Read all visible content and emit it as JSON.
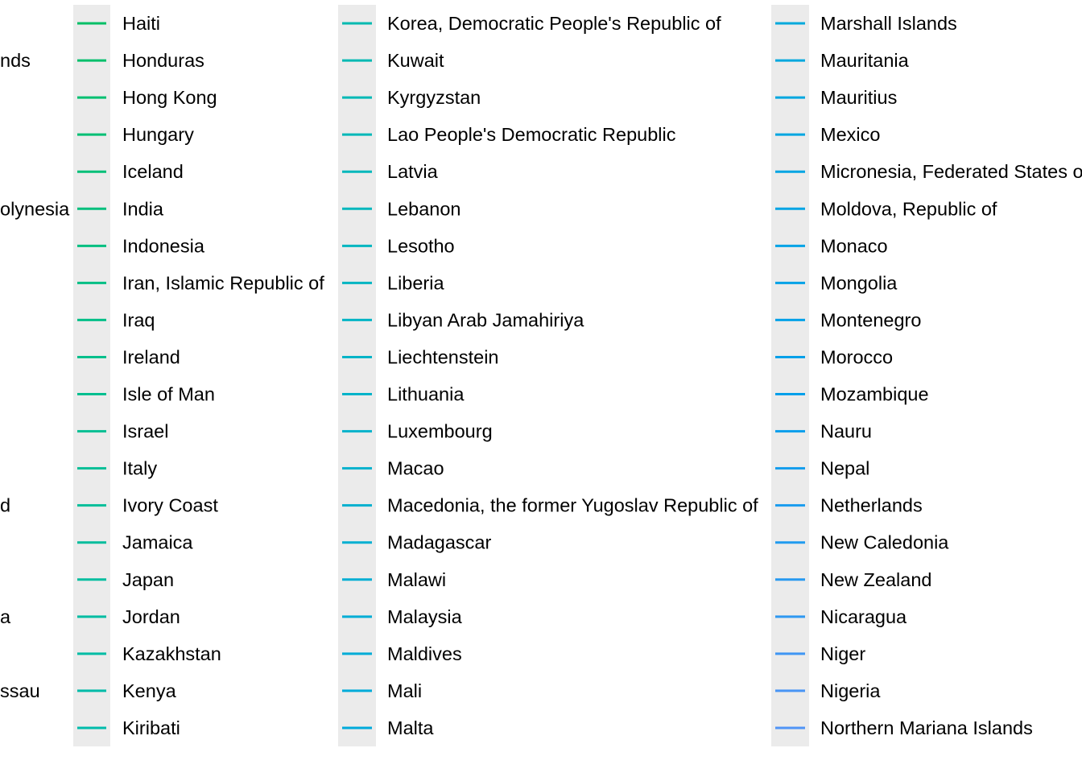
{
  "chart_data": {
    "type": "line",
    "legend_placement": "right",
    "legend_key_background": "#ebebeb",
    "legend": {
      "columns": [
        {
          "partial": true,
          "entries": [
            {
              "label": "",
              "color": "#00bf5d"
            },
            {
              "label": "nds",
              "color": "#00bf62"
            },
            {
              "label": "",
              "color": "#00bf66"
            },
            {
              "label": "",
              "color": "#00bf6b"
            },
            {
              "label": "",
              "color": "#00bf70"
            },
            {
              "label": "olynesia",
              "color": "#00bf74"
            },
            {
              "label": "",
              "color": "#00bf78"
            },
            {
              "label": "",
              "color": "#00bf7c"
            },
            {
              "label": "",
              "color": "#00bf80"
            },
            {
              "label": "",
              "color": "#00bf84"
            },
            {
              "label": "",
              "color": "#00bf88"
            },
            {
              "label": "",
              "color": "#00bf8b"
            },
            {
              "label": "",
              "color": "#00bf8f"
            },
            {
              "label": "d",
              "color": "#00bf93"
            },
            {
              "label": "",
              "color": "#00be96"
            },
            {
              "label": "",
              "color": "#00be99"
            },
            {
              "label": "a",
              "color": "#00bd9c"
            },
            {
              "label": "",
              "color": "#00bd9f"
            },
            {
              "label": "ssau",
              "color": "#00bca2"
            },
            {
              "label": "",
              "color": "#00bca5"
            }
          ]
        },
        {
          "partial": false,
          "entries": [
            {
              "label": "Haiti",
              "color": "#00bf66"
            },
            {
              "label": "Honduras",
              "color": "#00bf6b"
            },
            {
              "label": "Hong Kong",
              "color": "#00bf70"
            },
            {
              "label": "Hungary",
              "color": "#00bf74"
            },
            {
              "label": "Iceland",
              "color": "#00bf78"
            },
            {
              "label": "India",
              "color": "#00bf7c"
            },
            {
              "label": "Indonesia",
              "color": "#00bf80"
            },
            {
              "label": "Iran, Islamic Republic of",
              "color": "#00bf84"
            },
            {
              "label": "Iraq",
              "color": "#00bf88"
            },
            {
              "label": "Ireland",
              "color": "#00bf8b"
            },
            {
              "label": "Isle of Man",
              "color": "#00bf8f"
            },
            {
              "label": "Israel",
              "color": "#00bf93"
            },
            {
              "label": "Italy",
              "color": "#00be96"
            },
            {
              "label": "Ivory Coast",
              "color": "#00be99"
            },
            {
              "label": "Jamaica",
              "color": "#00bd9c"
            },
            {
              "label": "Japan",
              "color": "#00bd9f"
            },
            {
              "label": "Jordan",
              "color": "#00bca2"
            },
            {
              "label": "Kazakhstan",
              "color": "#00bca5"
            },
            {
              "label": "Kenya",
              "color": "#00bba8"
            },
            {
              "label": "Kiribati",
              "color": "#00bbab"
            }
          ]
        },
        {
          "partial": false,
          "entries": [
            {
              "label": "Korea, Democratic People's Republic of",
              "color": "#00bab0"
            },
            {
              "label": "Kuwait",
              "color": "#00b9b3"
            },
            {
              "label": "Kyrgyzstan",
              "color": "#00b9b6"
            },
            {
              "label": "Lao People's Democratic Republic",
              "color": "#00b8b8"
            },
            {
              "label": "Latvia",
              "color": "#00b8bb"
            },
            {
              "label": "Lebanon",
              "color": "#00b7bd"
            },
            {
              "label": "Lesotho",
              "color": "#00b6c0"
            },
            {
              "label": "Liberia",
              "color": "#00b5c2"
            },
            {
              "label": "Libyan Arab Jamahiriya",
              "color": "#00b5c5"
            },
            {
              "label": "Liechtenstein",
              "color": "#00b4c7"
            },
            {
              "label": "Lithuania",
              "color": "#00b3c9"
            },
            {
              "label": "Luxembourg",
              "color": "#00b2cb"
            },
            {
              "label": "Macao",
              "color": "#00b1cd"
            },
            {
              "label": "Macedonia, the former Yugoslav Republic of",
              "color": "#00b0cf"
            },
            {
              "label": "Madagascar",
              "color": "#00afd1"
            },
            {
              "label": "Malawi",
              "color": "#00aed3"
            },
            {
              "label": "Malaysia",
              "color": "#00add5"
            },
            {
              "label": "Maldives",
              "color": "#00acd7"
            },
            {
              "label": "Mali",
              "color": "#00abd9"
            },
            {
              "label": "Malta",
              "color": "#00aadb"
            }
          ]
        },
        {
          "partial": false,
          "entries": [
            {
              "label": "Marshall Islands",
              "color": "#00a9dc"
            },
            {
              "label": "Mauritania",
              "color": "#00a8de"
            },
            {
              "label": "Mauritius",
              "color": "#00a7e0"
            },
            {
              "label": "Mexico",
              "color": "#00a6e1"
            },
            {
              "label": "Micronesia, Federated States of",
              "color": "#00a5e3"
            },
            {
              "label": "Moldova, Republic of",
              "color": "#00a4e4"
            },
            {
              "label": "Monaco",
              "color": "#00a3e6"
            },
            {
              "label": "Mongolia",
              "color": "#00a2e7"
            },
            {
              "label": "Montenegro",
              "color": "#00a1e8"
            },
            {
              "label": "Morocco",
              "color": "#00a0e9"
            },
            {
              "label": "Mozambique",
              "color": "#009fea"
            },
            {
              "label": "Nauru",
              "color": "#079eec"
            },
            {
              "label": "Nepal",
              "color": "#129ded"
            },
            {
              "label": "Netherlands",
              "color": "#1a9cee"
            },
            {
              "label": "New Caledonia",
              "color": "#219bef"
            },
            {
              "label": "New Zealand",
              "color": "#2799f0"
            },
            {
              "label": "Nicaragua",
              "color": "#2e98f1"
            },
            {
              "label": "Niger",
              "color": "#3f96f4"
            },
            {
              "label": "Nigeria",
              "color": "#4895f5"
            },
            {
              "label": "Northern Mariana Islands",
              "color": "#5094f6"
            }
          ]
        }
      ]
    }
  }
}
